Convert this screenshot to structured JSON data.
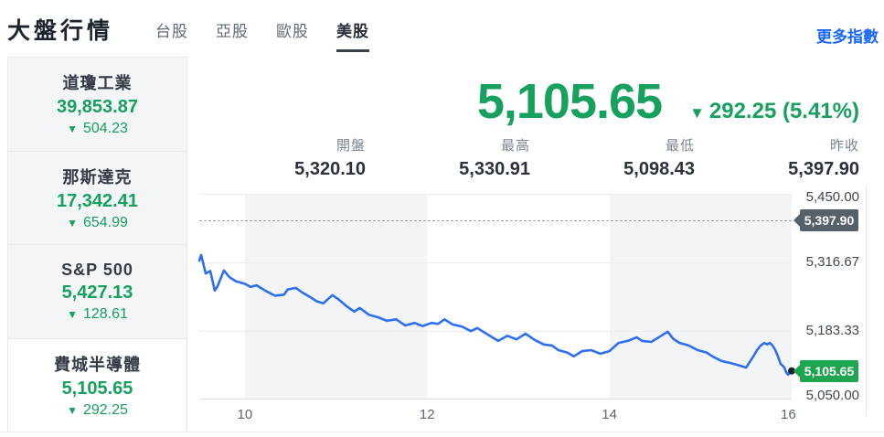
{
  "glyphs": {
    "down_arrow": "▼"
  },
  "colors": {
    "down_green": "#17a05e",
    "badge_green": "#1fa450",
    "badge_dark": "#566069",
    "link_blue": "#1765ff",
    "line_blue": "#2e6ff2"
  },
  "header": {
    "title": "大盤行情",
    "tabs": [
      {
        "label": "台股",
        "active": false
      },
      {
        "label": "亞股",
        "active": false
      },
      {
        "label": "歐股",
        "active": false
      },
      {
        "label": "美股",
        "active": true
      }
    ],
    "more_link": "更多指數"
  },
  "sidebar": {
    "items": [
      {
        "name": "道瓊工業",
        "value": "39,853.87",
        "change": "504.23",
        "direction": "down",
        "selected": false
      },
      {
        "name": "那斯達克",
        "value": "17,342.41",
        "change": "654.99",
        "direction": "down",
        "selected": false
      },
      {
        "name": "S&P 500",
        "value": "5,427.13",
        "change": "128.61",
        "direction": "down",
        "selected": false
      },
      {
        "name": "費城半導體",
        "value": "5,105.65",
        "change": "292.25",
        "direction": "down",
        "selected": true
      }
    ]
  },
  "quote": {
    "last": "5,105.65",
    "change": "292.25 (5.41%)",
    "direction": "down",
    "stats": [
      {
        "label": "開盤",
        "value": "5,320.10"
      },
      {
        "label": "最高",
        "value": "5,330.91"
      },
      {
        "label": "最低",
        "value": "5,098.43"
      },
      {
        "label": "昨收",
        "value": "5,397.90"
      }
    ]
  },
  "chart_data": {
    "type": "line",
    "title": "費城半導體 intraday",
    "xlabel": "",
    "ylabel": "",
    "x_unit": "hour_of_day",
    "x_range": [
      9.5,
      16
    ],
    "y_range": [
      5050,
      5450
    ],
    "grid": true,
    "y_ticks": [
      {
        "value": 5450,
        "label": "5,450.00"
      },
      {
        "value": 5316.67,
        "label": "5,316.67"
      },
      {
        "value": 5183.33,
        "label": "5,183.33"
      },
      {
        "value": 5050,
        "label": "5,050.00"
      }
    ],
    "x_ticks": [
      {
        "value": 10,
        "label": "10"
      },
      {
        "value": 12,
        "label": "12"
      },
      {
        "value": 14,
        "label": "14"
      },
      {
        "value": 16,
        "label": "16"
      }
    ],
    "session_bands": [
      [
        10,
        12
      ],
      [
        14,
        16
      ]
    ],
    "prev_close": {
      "value": 5397.9,
      "label": "5,397.90"
    },
    "last_point": {
      "value": 5105.65,
      "label": "5,105.65"
    },
    "series": [
      {
        "name": "費城半導體",
        "points": [
          [
            9.5,
            5320.1
          ],
          [
            9.52,
            5330.9
          ],
          [
            9.55,
            5310
          ],
          [
            9.57,
            5295
          ],
          [
            9.62,
            5300
          ],
          [
            9.67,
            5262
          ],
          [
            9.7,
            5270
          ],
          [
            9.77,
            5301
          ],
          [
            9.83,
            5288
          ],
          [
            9.9,
            5280
          ],
          [
            10.0,
            5275
          ],
          [
            10.06,
            5269
          ],
          [
            10.13,
            5272
          ],
          [
            10.23,
            5261
          ],
          [
            10.33,
            5252
          ],
          [
            10.43,
            5254
          ],
          [
            10.47,
            5264
          ],
          [
            10.56,
            5267
          ],
          [
            10.63,
            5258
          ],
          [
            10.72,
            5249
          ],
          [
            10.79,
            5241
          ],
          [
            10.86,
            5237
          ],
          [
            10.96,
            5253
          ],
          [
            11.02,
            5246
          ],
          [
            11.12,
            5231
          ],
          [
            11.2,
            5221
          ],
          [
            11.26,
            5228
          ],
          [
            11.36,
            5215
          ],
          [
            11.46,
            5210
          ],
          [
            11.56,
            5203
          ],
          [
            11.66,
            5206
          ],
          [
            11.76,
            5194
          ],
          [
            11.86,
            5199
          ],
          [
            11.95,
            5193
          ],
          [
            12.05,
            5199
          ],
          [
            12.12,
            5197
          ],
          [
            12.19,
            5206
          ],
          [
            12.28,
            5196
          ],
          [
            12.38,
            5192
          ],
          [
            12.48,
            5183
          ],
          [
            12.55,
            5189
          ],
          [
            12.65,
            5178
          ],
          [
            12.78,
            5164
          ],
          [
            12.88,
            5174
          ],
          [
            12.98,
            5167
          ],
          [
            13.08,
            5178
          ],
          [
            13.18,
            5166
          ],
          [
            13.28,
            5157
          ],
          [
            13.37,
            5155
          ],
          [
            13.44,
            5146
          ],
          [
            13.54,
            5141
          ],
          [
            13.61,
            5134
          ],
          [
            13.7,
            5144
          ],
          [
            13.8,
            5146
          ],
          [
            13.9,
            5139
          ],
          [
            14.0,
            5144
          ],
          [
            14.1,
            5160
          ],
          [
            14.2,
            5164
          ],
          [
            14.3,
            5171
          ],
          [
            14.36,
            5164
          ],
          [
            14.46,
            5162
          ],
          [
            14.56,
            5173
          ],
          [
            14.64,
            5182
          ],
          [
            14.7,
            5168
          ],
          [
            14.77,
            5160
          ],
          [
            14.87,
            5155
          ],
          [
            14.97,
            5146
          ],
          [
            15.07,
            5141
          ],
          [
            15.13,
            5134
          ],
          [
            15.23,
            5125
          ],
          [
            15.33,
            5121
          ],
          [
            15.43,
            5116
          ],
          [
            15.5,
            5112
          ],
          [
            15.54,
            5123
          ],
          [
            15.58,
            5134
          ],
          [
            15.62,
            5146
          ],
          [
            15.66,
            5155
          ],
          [
            15.7,
            5160
          ],
          [
            15.73,
            5157
          ],
          [
            15.76,
            5160
          ],
          [
            15.79,
            5155
          ],
          [
            15.82,
            5146
          ],
          [
            15.85,
            5134
          ],
          [
            15.88,
            5119
          ],
          [
            15.9,
            5116
          ],
          [
            15.92,
            5112
          ],
          [
            15.94,
            5103
          ],
          [
            15.96,
            5098.4
          ],
          [
            16.0,
            5105.65
          ]
        ]
      }
    ]
  }
}
